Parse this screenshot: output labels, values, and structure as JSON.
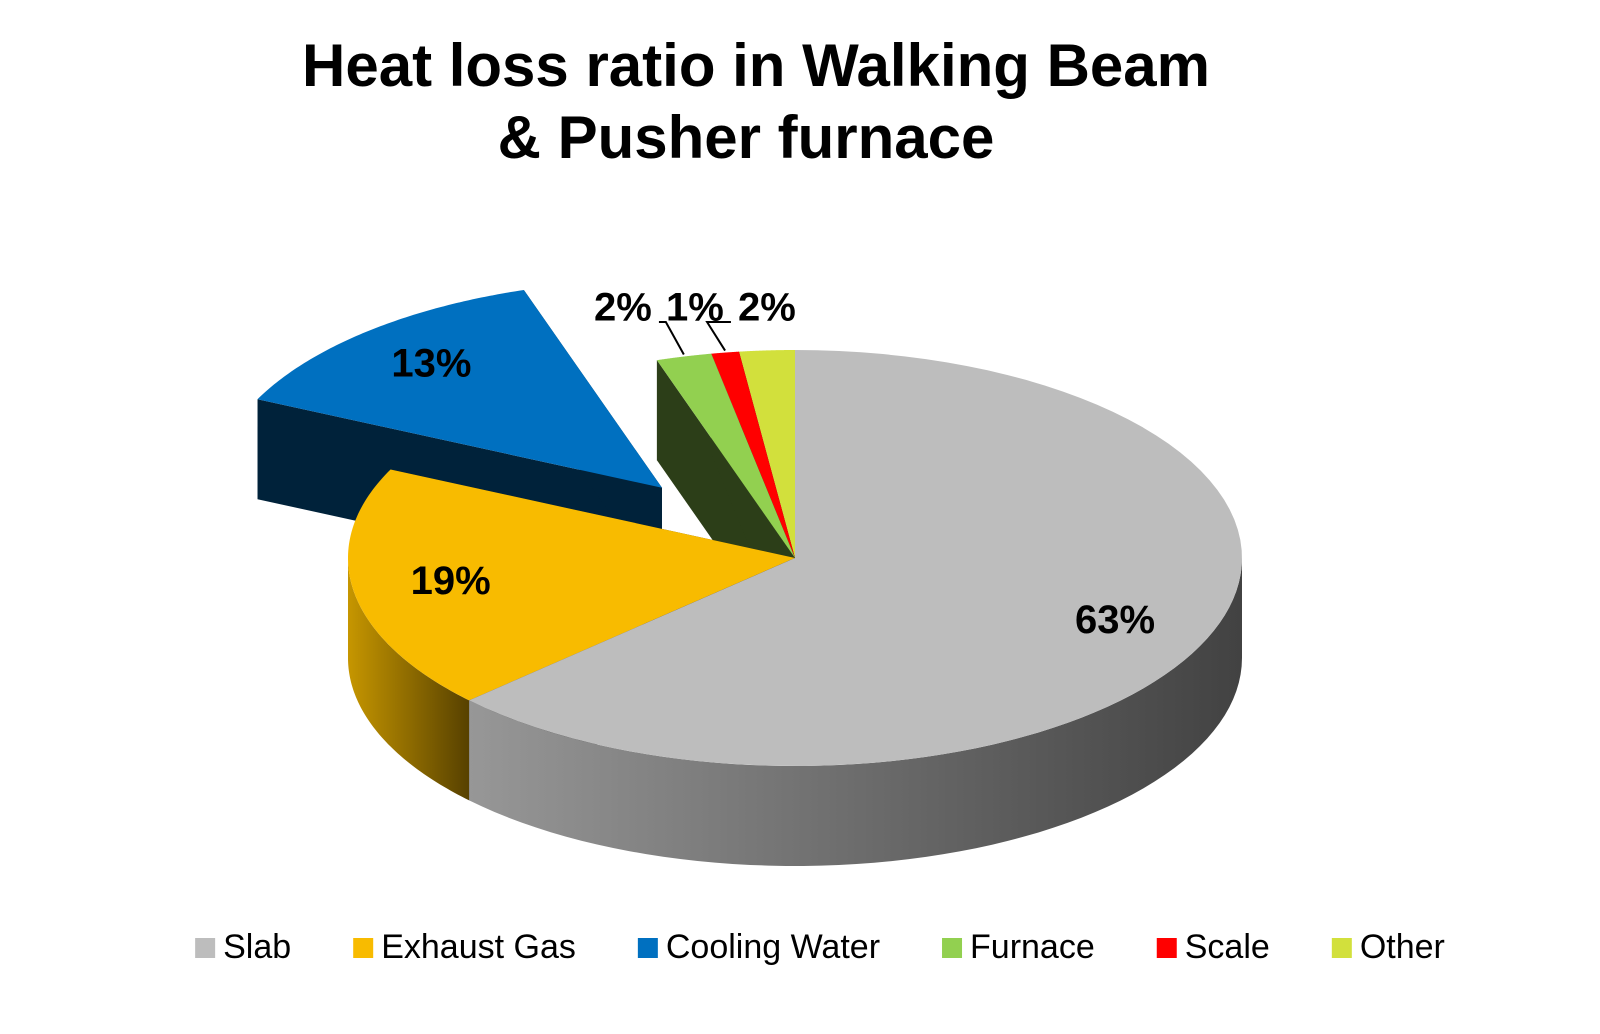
{
  "chart_data": {
    "type": "pie3d",
    "title": [
      "Heat loss ratio in Walking Beam",
      "& Pusher furnace"
    ],
    "categories": [
      "Slab",
      "Exhaust Gas",
      "Cooling Water",
      "Furnace",
      "Scale",
      "Other"
    ],
    "values": [
      63,
      19,
      13,
      2,
      1,
      2
    ],
    "value_labels": [
      "63%",
      "19%",
      "13%",
      "2%",
      "1%",
      "2%"
    ],
    "colors": [
      "#bdbdbd",
      "#f8bb00",
      "#0070c0",
      "#92d050",
      "#ff0000",
      "#d2e03c"
    ],
    "legend": "bottom"
  }
}
